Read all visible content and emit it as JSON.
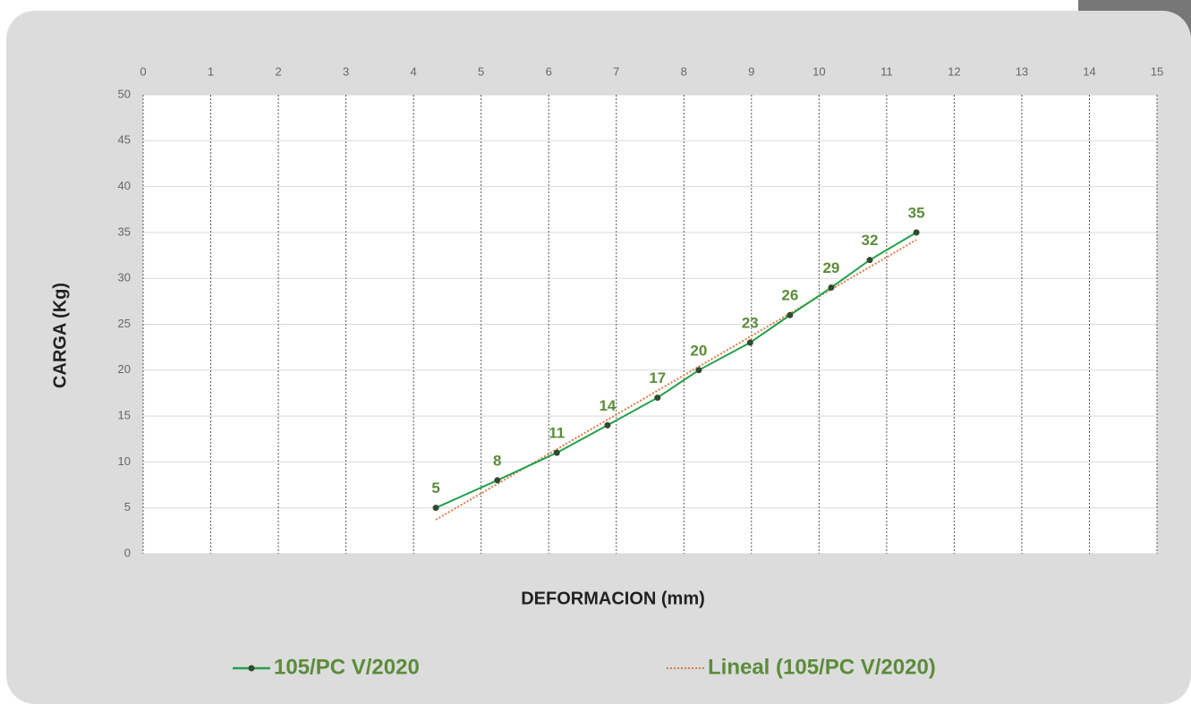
{
  "chart_data": {
    "type": "line",
    "xlabel": "DEFORMACION (mm)",
    "ylabel": "CARGA (Kg)",
    "xlim": [
      0,
      15
    ],
    "xticks": [
      0,
      1,
      2,
      3,
      4,
      5,
      6,
      7,
      8,
      9,
      10,
      11,
      12,
      13,
      14,
      15
    ],
    "ylim": [
      0,
      50
    ],
    "yticks": [
      0,
      5,
      10,
      15,
      20,
      25,
      30,
      35,
      40,
      45,
      50
    ],
    "grid": true,
    "legend": "bottom",
    "series": [
      {
        "name": "105/PC V/2020",
        "color": "#22a04a",
        "marker_color": "#2f4a2f",
        "x": [
          4.33,
          5.24,
          6.12,
          6.87,
          7.61,
          8.22,
          8.98,
          9.57,
          10.18,
          10.75,
          11.44
        ],
        "values": [
          5,
          8,
          11,
          14,
          17,
          20,
          23,
          26,
          29,
          32,
          35
        ]
      },
      {
        "name": "Lineal (105/PC V/2020)",
        "color": "#e07a45",
        "style": "dotted",
        "x": [
          4.33,
          11.44
        ],
        "values": [
          3.7,
          34.2
        ]
      }
    ]
  }
}
